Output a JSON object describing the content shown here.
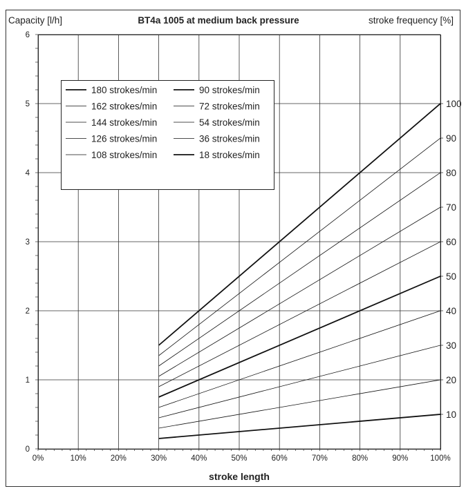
{
  "chart_data": {
    "type": "line",
    "title": "BT4a 1005 at medium back pressure",
    "ylabel": "Capacity [l/h]",
    "y2label": "stroke frequency [%]",
    "xlabel": "stroke length",
    "x_ticks": [
      "0%",
      "10%",
      "20%",
      "30%",
      "40%",
      "50%",
      "60%",
      "70%",
      "80%",
      "90%",
      "100%"
    ],
    "y_ticks": [
      "0",
      "1",
      "2",
      "3",
      "4",
      "5",
      "6"
    ],
    "y2_ticks": [
      "10",
      "20",
      "30",
      "40",
      "50",
      "60",
      "70",
      "80",
      "90",
      "100"
    ],
    "xlim": [
      0,
      100
    ],
    "ylim": [
      0,
      6
    ],
    "grid": true,
    "legend_position": "top-left",
    "x": [
      30,
      100
    ],
    "series": [
      {
        "name": "180 strokes/min",
        "values": [
          1.5,
          5.0
        ],
        "bold": true
      },
      {
        "name": "162 strokes/min",
        "values": [
          1.35,
          4.5
        ],
        "bold": false
      },
      {
        "name": "144 strokes/min",
        "values": [
          1.2,
          4.0
        ],
        "bold": false
      },
      {
        "name": "126 strokes/min",
        "values": [
          1.05,
          3.5
        ],
        "bold": false
      },
      {
        "name": "108 strokes/min",
        "values": [
          0.9,
          3.0
        ],
        "bold": false
      },
      {
        "name": "90 strokes/min",
        "values": [
          0.75,
          2.5
        ],
        "bold": true
      },
      {
        "name": "72 strokes/min",
        "values": [
          0.6,
          2.0
        ],
        "bold": false
      },
      {
        "name": "54 strokes/min",
        "values": [
          0.45,
          1.5
        ],
        "bold": false
      },
      {
        "name": "36 strokes/min",
        "values": [
          0.3,
          1.0
        ],
        "bold": false
      },
      {
        "name": "18 strokes/min",
        "values": [
          0.15,
          0.5
        ],
        "bold": true
      }
    ]
  }
}
